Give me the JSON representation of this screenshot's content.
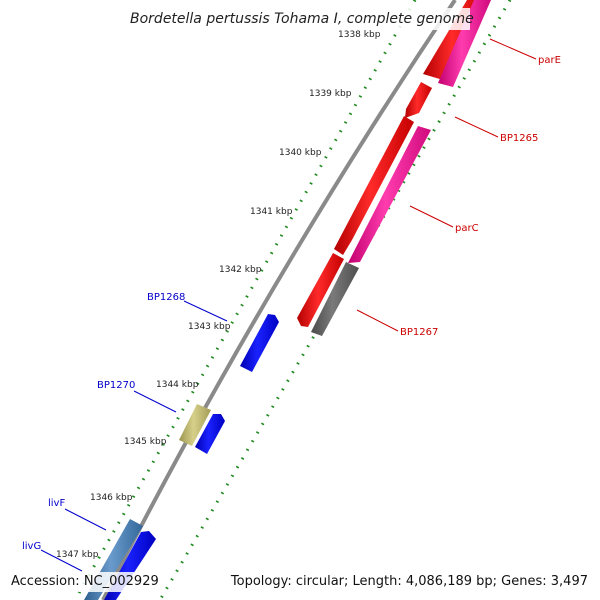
{
  "title": "Bordetella pertussis Tohama I, complete genome",
  "footer": {
    "accession": "Accession: NC_002929",
    "summary": "Topology: circular; Length: 4,086,189 bp; Genes: 3,497"
  },
  "colors": {
    "backbone": "#8a8a8a",
    "tick_dots": "#1f8a1f",
    "cds_red": "#ff1a1a",
    "cds_pink": "#ff2aa0",
    "cds_gray": "#6e6e6e",
    "cds_blue": "#0a12ff",
    "cds_khaki": "#c8c27a",
    "cds_steel": "#4f86b8",
    "label_red": "#cc0000",
    "label_blue": "#0000cc"
  },
  "ticks": [
    "1338 kbp",
    "1339 kbp",
    "1340 kbp",
    "1341 kbp",
    "1342 kbp",
    "1343 kbp",
    "1344 kbp",
    "1345 kbp",
    "1346 kbp",
    "1347 kbp"
  ],
  "gene_labels": {
    "parE": "parE",
    "BP1265": "BP1265",
    "parC": "parC",
    "BP1267": "BP1267",
    "BP1268": "BP1268",
    "BP1270": "BP1270",
    "livF": "livF",
    "livG": "livG"
  }
}
